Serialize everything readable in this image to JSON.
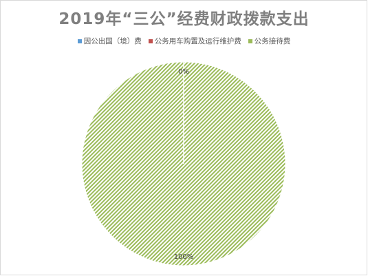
{
  "chart_data": {
    "type": "pie",
    "title": "2019年“三公”经费财政拨款支出",
    "categories": [
      "因公出国（境）费",
      "公务用车购置及运行维护费",
      "公务接待费"
    ],
    "values": [
      0,
      0,
      100
    ],
    "data_labels": [
      "0%",
      "0%",
      "100%"
    ],
    "colors": [
      "#5b9bd5",
      "#c0504d",
      "#9bbb59"
    ],
    "legend_position": "top",
    "fill_pattern": "diagonal-hatch"
  }
}
